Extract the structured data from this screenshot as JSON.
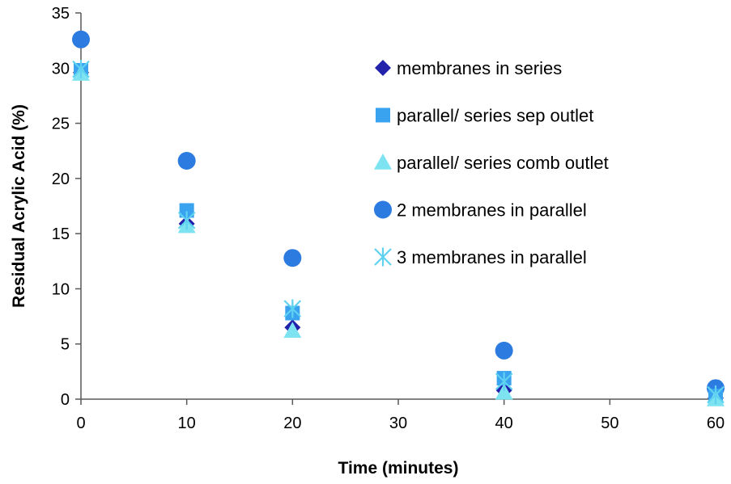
{
  "chart_data": {
    "type": "scatter",
    "title": "",
    "xlabel": "Time (minutes)",
    "ylabel": "Residual Acrylic Acid (%)",
    "xlim": [
      0,
      60
    ],
    "ylim": [
      0,
      35
    ],
    "xticks": [
      0,
      10,
      20,
      30,
      40,
      50,
      60
    ],
    "yticks": [
      0,
      5,
      10,
      15,
      20,
      25,
      30,
      35
    ],
    "grid": false,
    "legend_position": "right",
    "series": [
      {
        "name": "membranes in series",
        "marker": "diamond",
        "color": "#2222AA",
        "points": [
          {
            "x": 0,
            "y": 29.6
          },
          {
            "x": 10,
            "y": 15.9
          },
          {
            "x": 20,
            "y": 6.5
          },
          {
            "x": 40,
            "y": 0.8
          },
          {
            "x": 60,
            "y": 0.1
          }
        ]
      },
      {
        "name": "parallel/ series sep outlet",
        "marker": "square",
        "color": "#3AA3F0",
        "points": [
          {
            "x": 0,
            "y": 29.8
          },
          {
            "x": 10,
            "y": 17.1
          },
          {
            "x": 20,
            "y": 7.8
          },
          {
            "x": 40,
            "y": 1.9
          },
          {
            "x": 60,
            "y": 0.3
          }
        ]
      },
      {
        "name": "parallel/ series comb outlet",
        "marker": "triangle",
        "color": "#7EE3F0",
        "points": [
          {
            "x": 0,
            "y": 29.5
          },
          {
            "x": 10,
            "y": 15.7
          },
          {
            "x": 20,
            "y": 6.2
          },
          {
            "x": 40,
            "y": 0.6
          },
          {
            "x": 60,
            "y": 0.0
          }
        ]
      },
      {
        "name": "2 membranes in parallel",
        "marker": "circle",
        "color": "#2B7BE0",
        "points": [
          {
            "x": 0,
            "y": 32.6
          },
          {
            "x": 10,
            "y": 21.6
          },
          {
            "x": 20,
            "y": 12.8
          },
          {
            "x": 40,
            "y": 4.4
          },
          {
            "x": 60,
            "y": 1.0
          }
        ]
      },
      {
        "name": "3 membranes in parallel",
        "marker": "asterisk",
        "color": "#5ED2F0",
        "points": [
          {
            "x": 0,
            "y": 29.9
          },
          {
            "x": 10,
            "y": 16.2
          },
          {
            "x": 20,
            "y": 8.2
          },
          {
            "x": 40,
            "y": 1.6
          },
          {
            "x": 60,
            "y": 0.4
          }
        ]
      }
    ]
  }
}
